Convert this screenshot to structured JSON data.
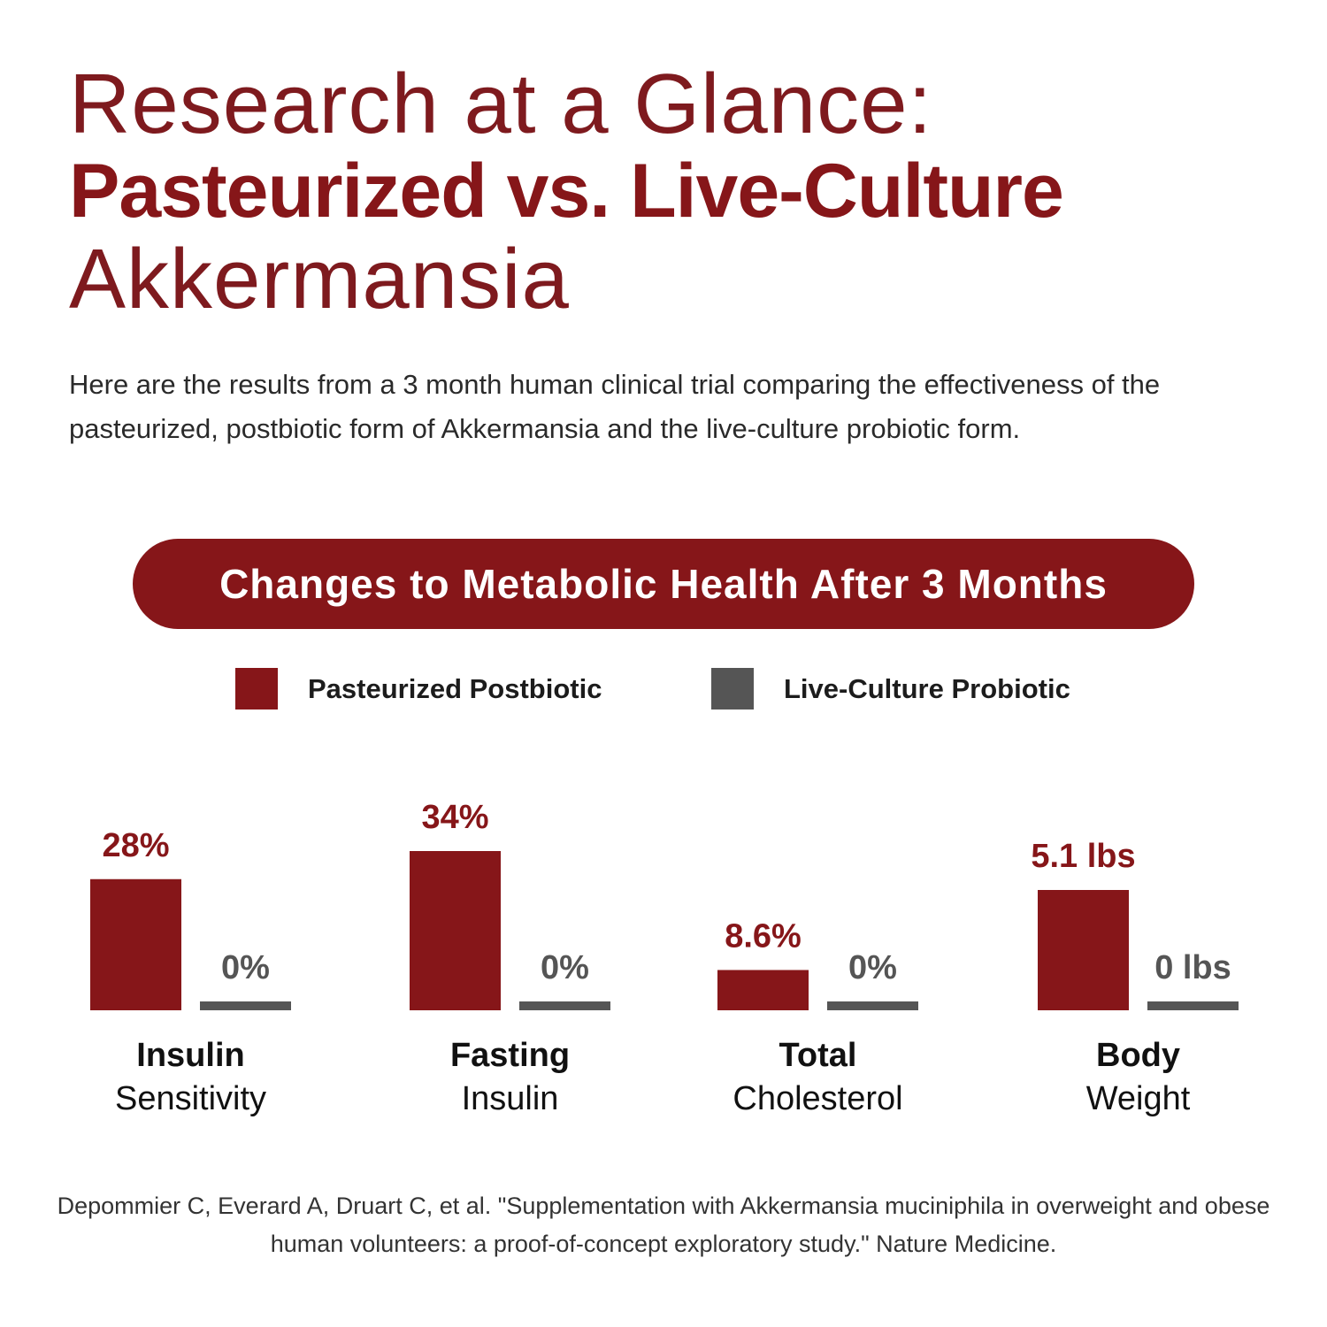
{
  "header": {
    "title_line1": "Research at a Glance:",
    "title_line2": "Pasteurized vs. Live-Culture",
    "title_line3": "Akkermansia"
  },
  "intro": {
    "text": "Here are the results from a 3 month human clinical trial comparing the effectiveness of the pasteurized, postbiotic form of Akkermansia and the live-culture probiotic form."
  },
  "banner": {
    "text": "Changes to Metabolic Health After 3 Months"
  },
  "colors": {
    "brand": "#861619",
    "pasteurized": "#861619",
    "live": "#555555"
  },
  "chart_data": {
    "type": "bar",
    "title": "Changes to Metabolic Health After 3 Months",
    "legend_position": "top",
    "grid": false,
    "series": [
      {
        "name": "Pasteurized Postbiotic",
        "color": "#861619"
      },
      {
        "name": "Live-Culture Probiotic",
        "color": "#555555"
      }
    ],
    "groups": [
      {
        "label_line1": "Insulin",
        "label_line2": "Sensitivity",
        "unit": "%",
        "values": [
          28,
          0
        ],
        "labels": [
          "28%",
          "0%"
        ]
      },
      {
        "label_line1": "Fasting",
        "label_line2": "Insulin",
        "unit": "%",
        "values": [
          34,
          0
        ],
        "labels": [
          "34%",
          "0%"
        ]
      },
      {
        "label_line1": "Total",
        "label_line2": "Cholesterol",
        "unit": "%",
        "values": [
          8.6,
          0
        ],
        "labels": [
          "8.6%",
          "0%"
        ]
      },
      {
        "label_line1": "Body",
        "label_line2": "Weight",
        "unit": "lbs",
        "values": [
          5.1,
          0
        ],
        "labels": [
          "5.1 lbs",
          "0 lbs"
        ]
      }
    ]
  },
  "citation": {
    "text": "Depommier C, Everard A, Druart C, et al. \"Supplementation with Akkermansia muciniphila in overweight and obese human volunteers: a proof-of-concept exploratory study.\" Nature Medicine."
  }
}
